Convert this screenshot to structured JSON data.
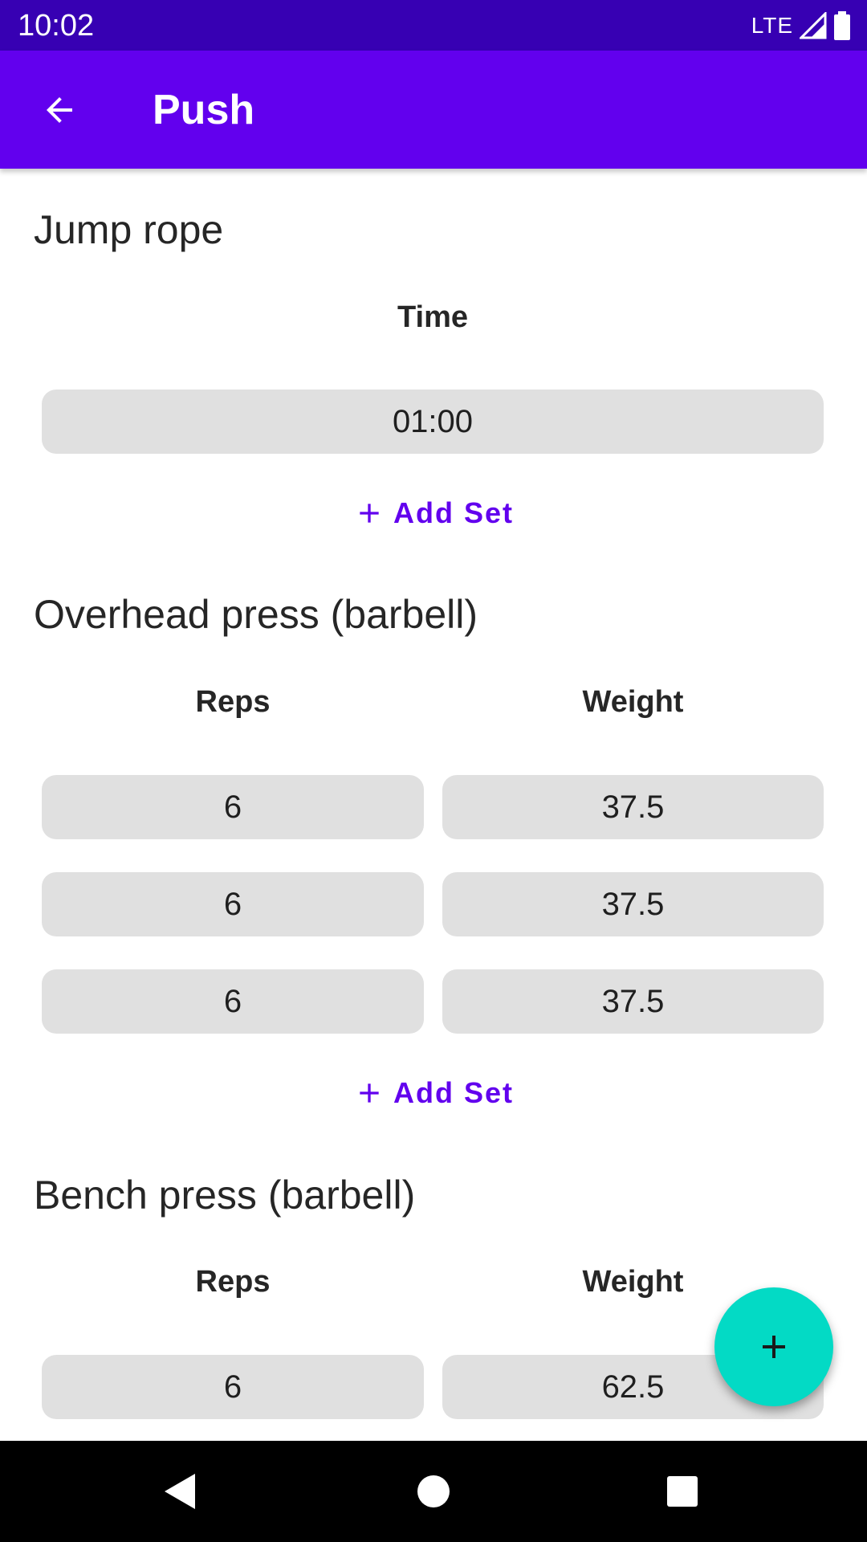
{
  "status_bar": {
    "time": "10:02",
    "network": "LTE",
    "icons": [
      "signal-icon",
      "battery-icon"
    ]
  },
  "app_bar": {
    "title": "Push",
    "back_icon": "arrow-back-icon"
  },
  "exercises": [
    {
      "name": "Jump rope",
      "headers": [
        "Time"
      ],
      "sets": [
        [
          "01:00"
        ]
      ],
      "add_set_label": "Add Set"
    },
    {
      "name": "Overhead press (barbell)",
      "headers": [
        "Reps",
        "Weight"
      ],
      "sets": [
        [
          "6",
          "37.5"
        ],
        [
          "6",
          "37.5"
        ],
        [
          "6",
          "37.5"
        ]
      ],
      "add_set_label": "Add Set"
    },
    {
      "name": "Bench press (barbell)",
      "headers": [
        "Reps",
        "Weight"
      ],
      "sets": [
        [
          "6",
          "62.5"
        ]
      ]
    }
  ],
  "fab": {
    "icon": "plus-icon",
    "color": "#03dac5"
  },
  "colors": {
    "status_bar": "#3700b3",
    "primary": "#6200ee",
    "accent": "#03dac5",
    "cell_bg": "#e0e0e0"
  },
  "nav_bar": {
    "icons": [
      "back-triangle-icon",
      "home-circle-icon",
      "recents-square-icon"
    ]
  }
}
